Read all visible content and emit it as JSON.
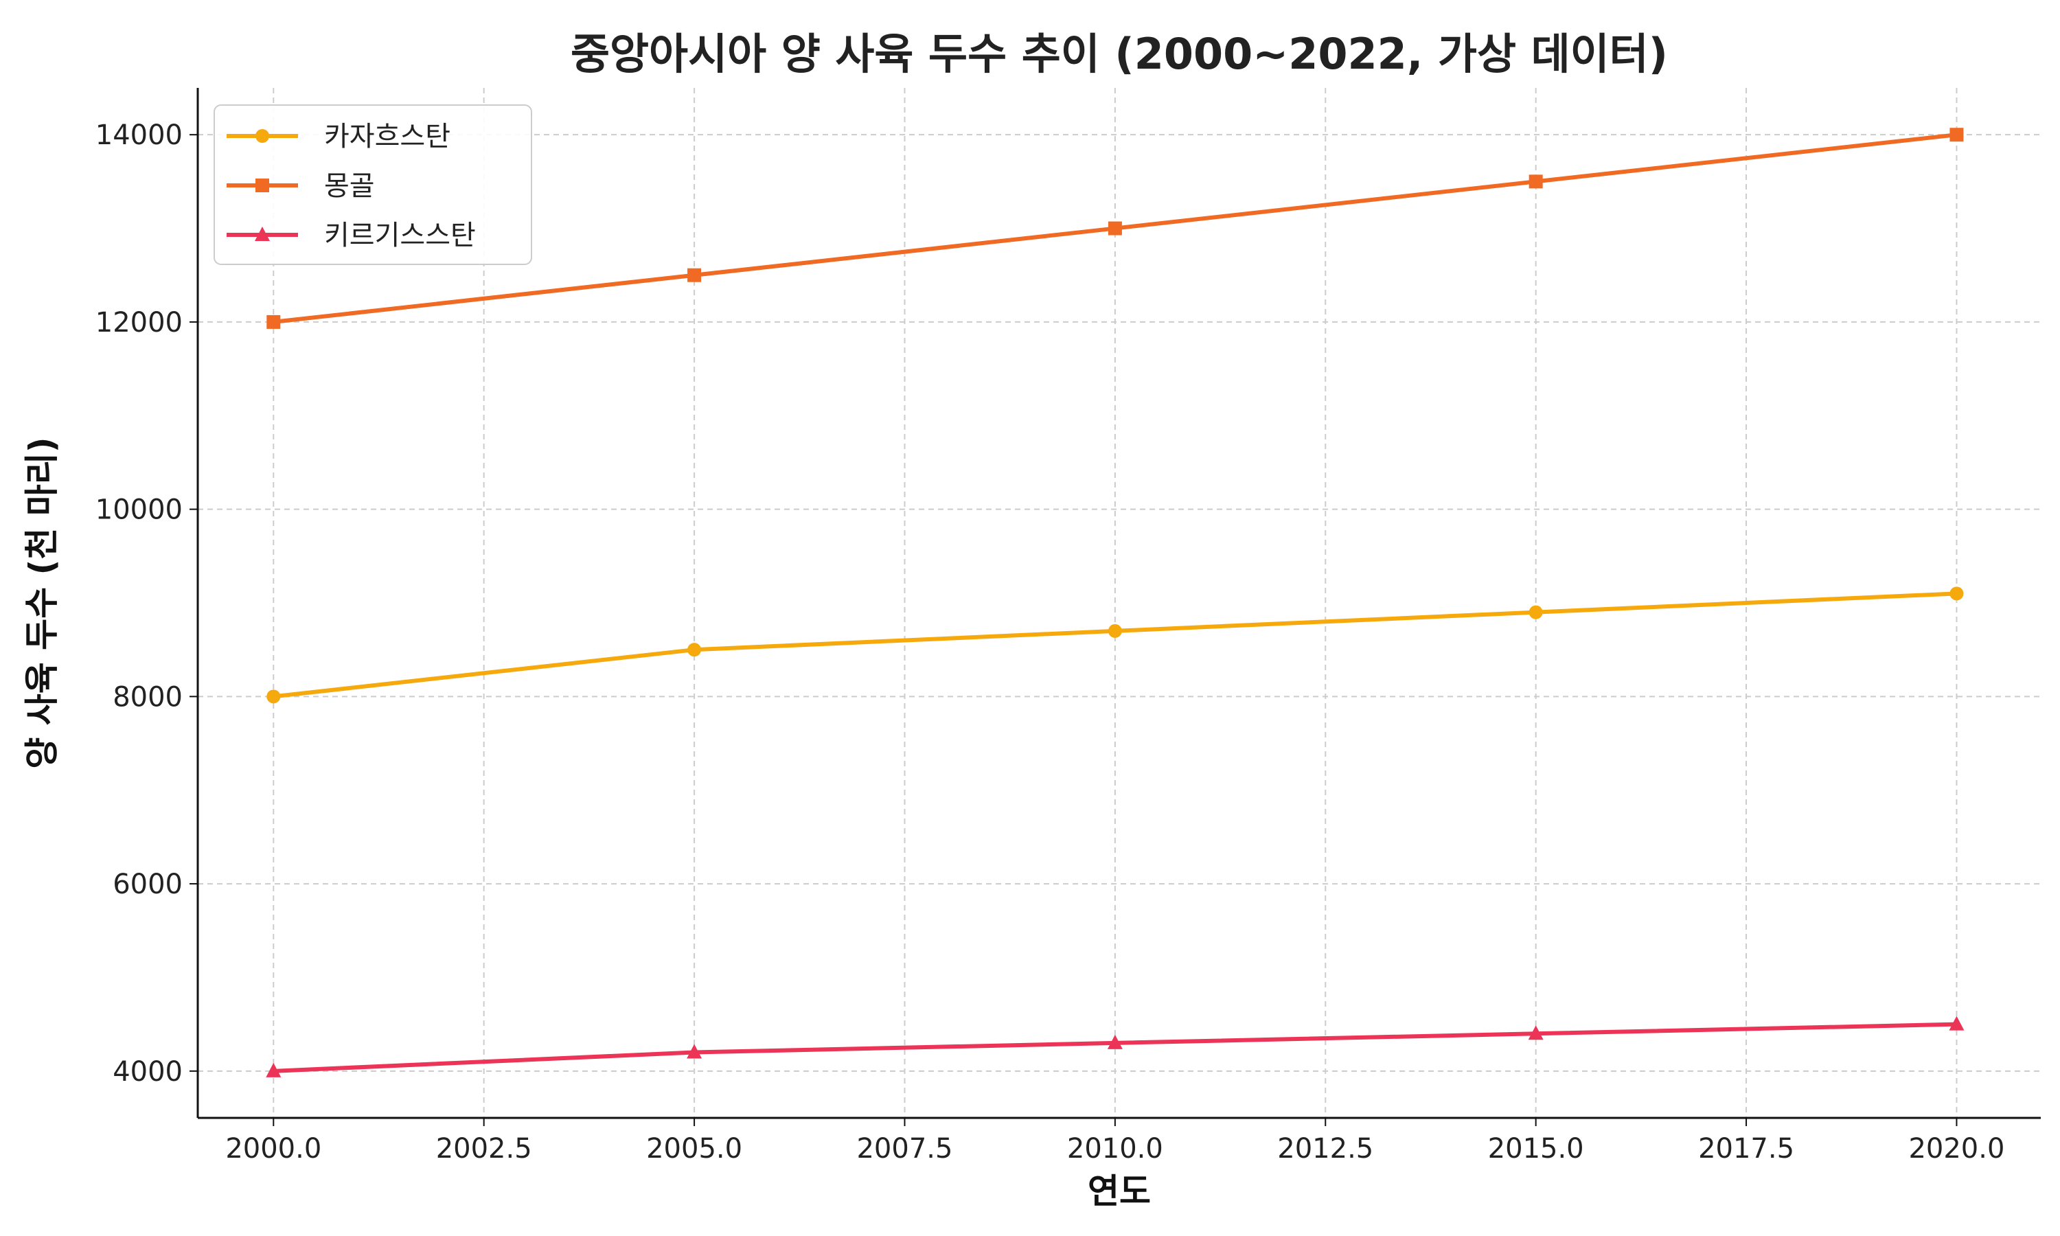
{
  "chart_data": {
    "type": "line",
    "title": "중앙아시아 양 사육 두수 추이 (2000~2022, 가상 데이터)",
    "xlabel": "연도",
    "ylabel": "양 사육 두수 (천 마리)",
    "x": [
      2000,
      2005,
      2010,
      2015,
      2020
    ],
    "xlim": [
      1999.1,
      2021.0
    ],
    "ylim": [
      3500,
      14500
    ],
    "xticks": [
      2000.0,
      2002.5,
      2005.0,
      2007.5,
      2010.0,
      2012.5,
      2015.0,
      2017.5,
      2020.0
    ],
    "xtick_labels": [
      "2000.0",
      "2002.5",
      "2005.0",
      "2007.5",
      "2010.0",
      "2012.5",
      "2015.0",
      "2017.5",
      "2020.0"
    ],
    "yticks": [
      4000,
      6000,
      8000,
      10000,
      12000,
      14000
    ],
    "ytick_labels": [
      "4000",
      "6000",
      "8000",
      "10000",
      "12000",
      "14000"
    ],
    "grid": true,
    "legend_position": "top-left",
    "series": [
      {
        "name": "카자흐스탄",
        "values": [
          8000,
          8500,
          8700,
          8900,
          9100
        ],
        "color": "#F6A90C",
        "marker": "circle"
      },
      {
        "name": "몽골",
        "values": [
          12000,
          12500,
          13000,
          13500,
          14000
        ],
        "color": "#F06A23",
        "marker": "square"
      },
      {
        "name": "키르기스스탄",
        "values": [
          4000,
          4200,
          4300,
          4400,
          4500
        ],
        "color": "#EC3456",
        "marker": "triangle"
      }
    ]
  }
}
